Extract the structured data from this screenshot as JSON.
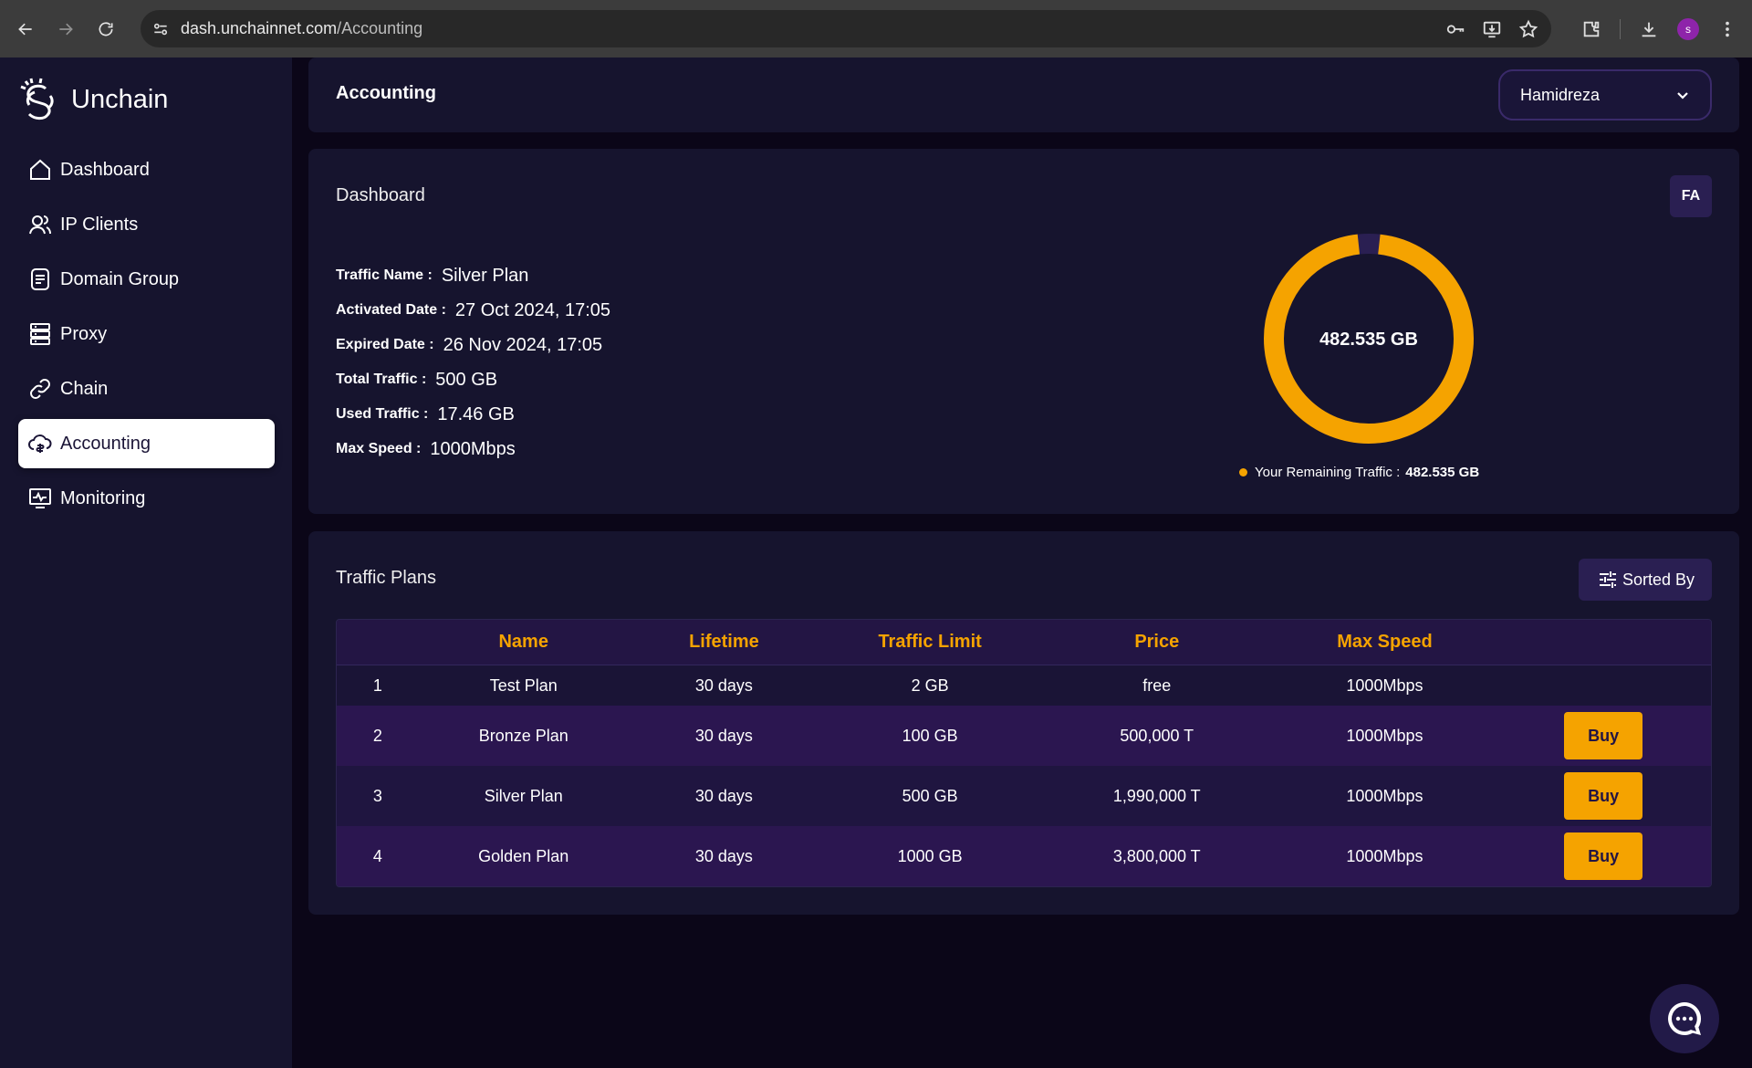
{
  "browser": {
    "url_host": "dash.unchainnet.com",
    "url_path": "/Accounting",
    "profile_initial": "s"
  },
  "brand": {
    "name": "Unchain"
  },
  "sidebar": {
    "items": [
      {
        "label": "Dashboard",
        "icon": "home-icon"
      },
      {
        "label": "IP Clients",
        "icon": "users-icon"
      },
      {
        "label": "Domain Group",
        "icon": "document-icon"
      },
      {
        "label": "Proxy",
        "icon": "server-icon"
      },
      {
        "label": "Chain",
        "icon": "link-icon"
      },
      {
        "label": "Accounting",
        "icon": "cloud-money-icon",
        "active": true
      },
      {
        "label": "Monitoring",
        "icon": "monitor-icon"
      }
    ]
  },
  "header": {
    "title": "Accounting",
    "user": "Hamidreza"
  },
  "dashboard": {
    "title": "Dashboard",
    "lang": "FA",
    "info": [
      {
        "key": "Traffic Name :",
        "value": "Silver Plan"
      },
      {
        "key": "Activated Date :",
        "value": "27 Oct 2024, 17:05"
      },
      {
        "key": "Expired Date :",
        "value": "26 Nov 2024, 17:05"
      },
      {
        "key": "Total Traffic :",
        "value": "500 GB"
      },
      {
        "key": "Used Traffic :",
        "value": "17.46 GB"
      },
      {
        "key": "Max Speed :",
        "value": "1000Mbps"
      }
    ],
    "donut_center": "482.535 GB",
    "remaining_fraction": 0.965,
    "ring_color": "#f5a300",
    "legend_label": "Your Remaining Traffic :",
    "legend_value": "482.535 GB"
  },
  "plans": {
    "title": "Traffic Plans",
    "sort_label": "Sorted By",
    "headers": [
      "",
      "Name",
      "Lifetime",
      "Traffic Limit",
      "Price",
      "Max Speed",
      ""
    ],
    "rows": [
      {
        "num": "1",
        "name": "Test Plan",
        "lifetime": "30 days",
        "limit": "2 GB",
        "price": "free",
        "speed": "1000Mbps",
        "buy": ""
      },
      {
        "num": "2",
        "name": "Bronze Plan",
        "lifetime": "30 days",
        "limit": "100 GB",
        "price": "500,000 T",
        "speed": "1000Mbps",
        "buy": "Buy"
      },
      {
        "num": "3",
        "name": "Silver Plan",
        "lifetime": "30 days",
        "limit": "500 GB",
        "price": "1,990,000 T",
        "speed": "1000Mbps",
        "buy": "Buy"
      },
      {
        "num": "4",
        "name": "Golden Plan",
        "lifetime": "30 days",
        "limit": "1000 GB",
        "price": "3,800,000 T",
        "speed": "1000Mbps",
        "buy": "Buy"
      }
    ]
  },
  "accent_color": "#f5a300"
}
